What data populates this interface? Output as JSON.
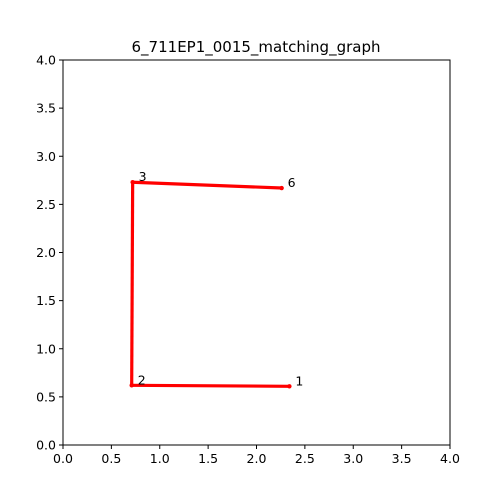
{
  "chart_data": {
    "type": "line",
    "title": "6_711EP1_0015_matching_graph",
    "xlabel": "",
    "ylabel": "",
    "xlim": [
      0.0,
      4.0
    ],
    "ylim": [
      0.0,
      4.0
    ],
    "xticks": [
      "0.0",
      "0.5",
      "1.0",
      "1.5",
      "2.0",
      "2.5",
      "3.0",
      "3.5",
      "4.0"
    ],
    "yticks": [
      "0.0",
      "0.5",
      "1.0",
      "1.5",
      "2.0",
      "2.5",
      "3.0",
      "3.5",
      "4.0"
    ],
    "grid": false,
    "edge_color": "#ff0000",
    "nodes": [
      {
        "label": "1",
        "x": 2.34,
        "y": 0.61
      },
      {
        "label": "2",
        "x": 0.71,
        "y": 0.62
      },
      {
        "label": "3",
        "x": 0.72,
        "y": 2.73
      },
      {
        "label": "6",
        "x": 2.26,
        "y": 2.67
      }
    ],
    "edges": [
      {
        "from": "1",
        "to": "2"
      },
      {
        "from": "2",
        "to": "3"
      },
      {
        "from": "3",
        "to": "6"
      }
    ]
  }
}
